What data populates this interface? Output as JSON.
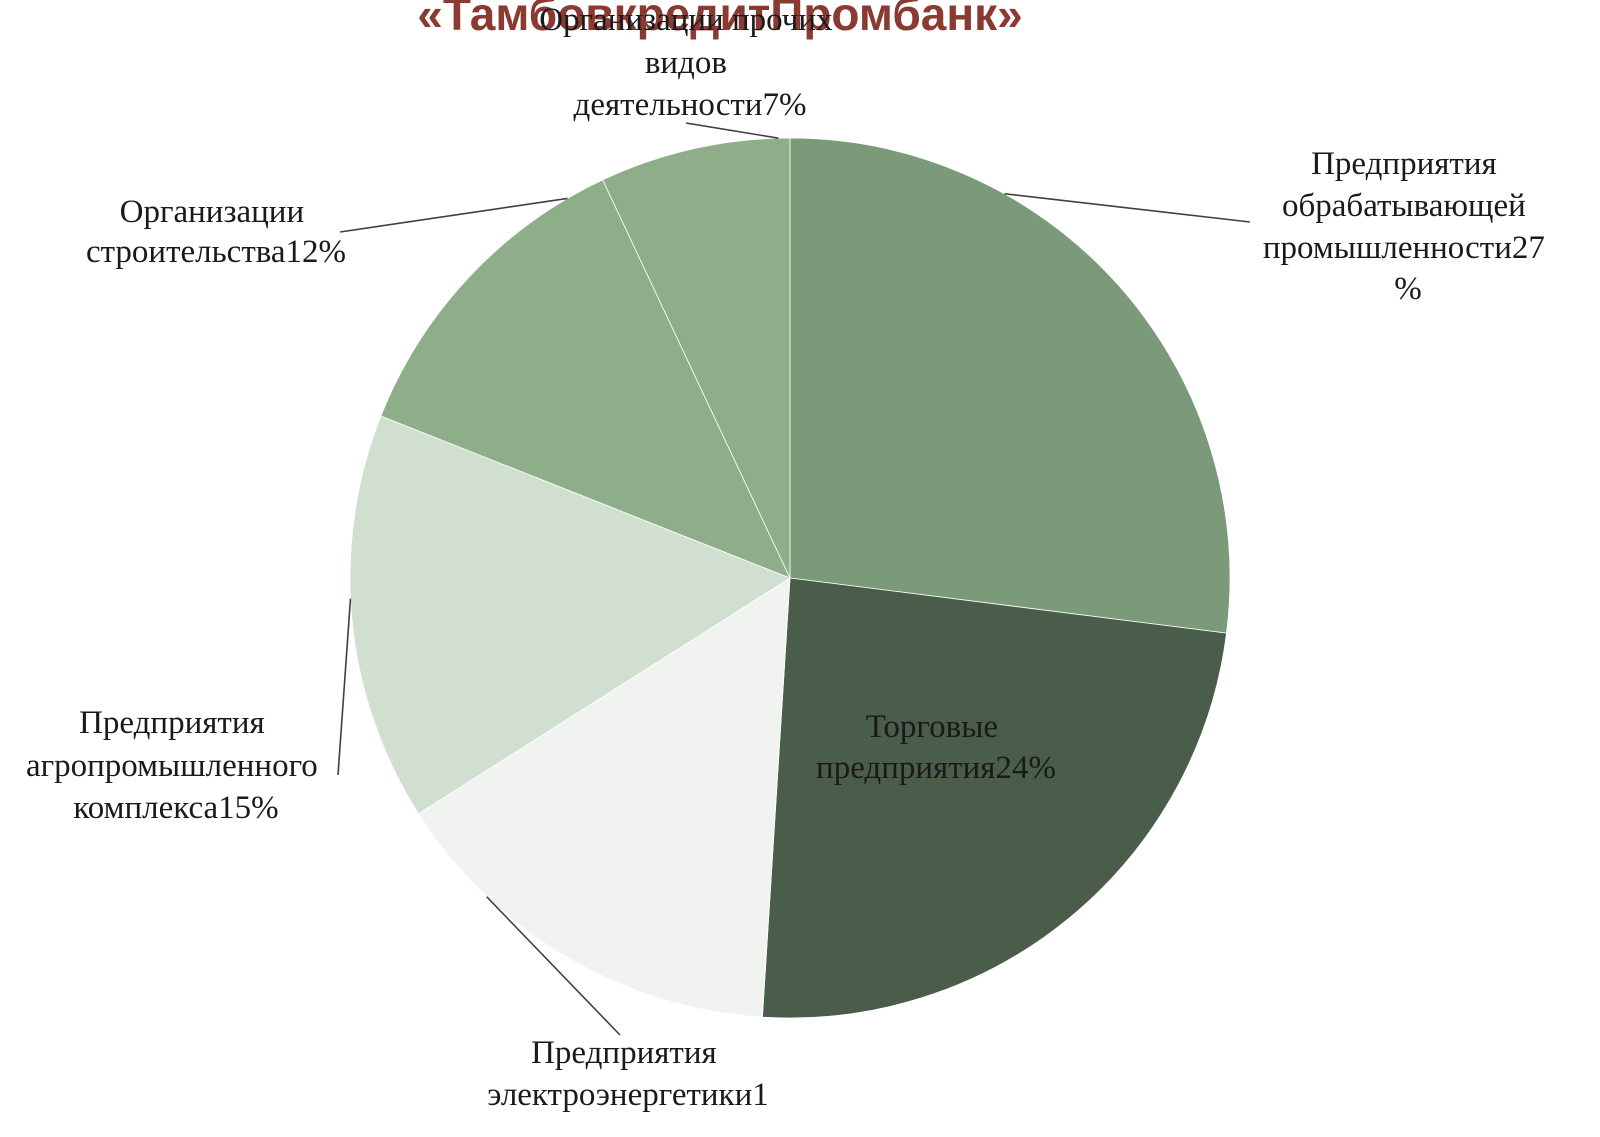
{
  "slide": {
    "title": "«ТамбовкредитПромбанк»"
  },
  "chart_data": {
    "type": "pie",
    "title": "",
    "slices": [
      {
        "label_lines": [
          "Предприятия",
          "обрабатывающей",
          "промышленности27",
          "%"
        ],
        "value": 27,
        "color": "#7a9a7a"
      },
      {
        "label_lines": [
          "Торговые",
          "предприятия24%"
        ],
        "value": 24,
        "color": "#4a5c4a"
      },
      {
        "label_lines": [
          "Предприятия",
          "электроэнергетики1"
        ],
        "value": 15,
        "color": "#f1f3f1"
      },
      {
        "label_lines": [
          "Предприятия",
          "агропромышленного",
          "комплекса15%"
        ],
        "value": 15,
        "color": "#d0dfd0"
      },
      {
        "label_lines": [
          "Организации",
          "строительства12%"
        ],
        "value": 12,
        "color": "#8eae8a"
      },
      {
        "label_lines": [
          "Организации прочих",
          "видов",
          "деятельности7%"
        ],
        "value": 7,
        "color": "#8eae8a"
      }
    ]
  }
}
